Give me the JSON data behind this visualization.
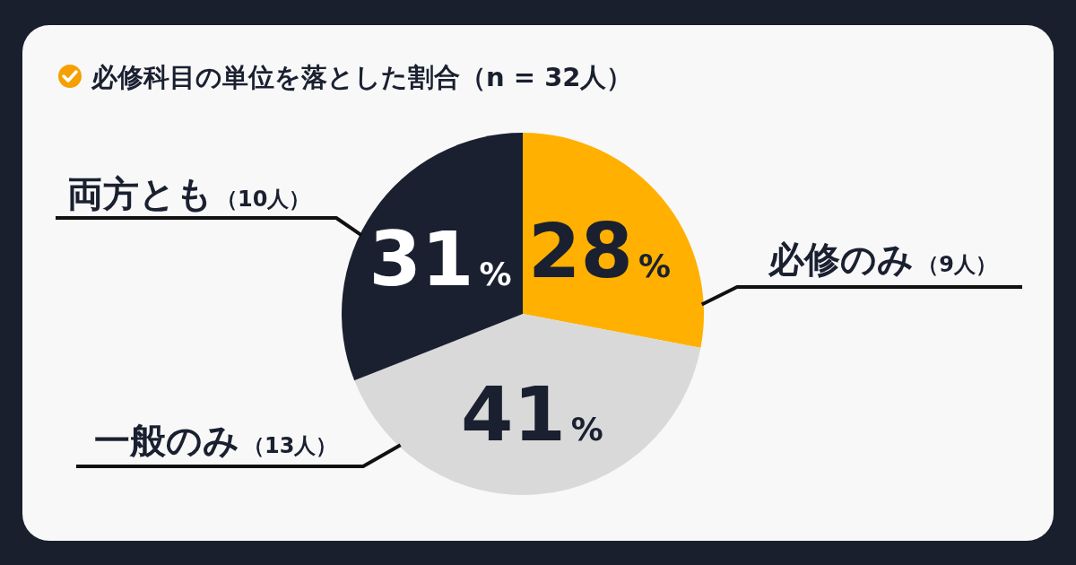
{
  "chart_data": {
    "type": "pie",
    "title": "必修科目の単位を落とした割合（n = 32人）",
    "categories": [
      "必修のみ（9人）",
      "一般のみ（13人）",
      "両方とも（10人）"
    ],
    "values": [
      28,
      41,
      31
    ],
    "colors": [
      "#ffb000",
      "#d9d9d9",
      "#1a2030"
    ],
    "value_labels": [
      "28%",
      "41%",
      "31%"
    ]
  }
}
